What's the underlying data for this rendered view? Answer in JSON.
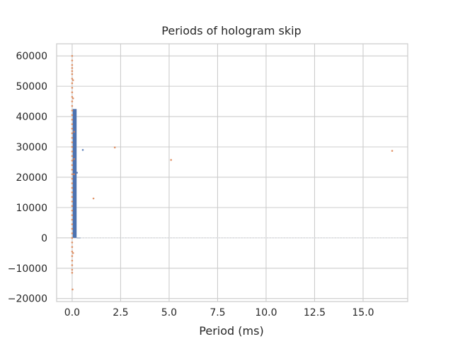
{
  "chart_data": {
    "type": "bar",
    "title": "Periods of hologram skip",
    "xlabel": "Period (ms)",
    "ylabel": "",
    "xlim": [
      -0.8,
      17.3
    ],
    "ylim": [
      -21000,
      64000
    ],
    "grid": true,
    "xticks": [
      0.0,
      2.5,
      5.0,
      7.5,
      10.0,
      12.5,
      15.0
    ],
    "xtick_labels": [
      "0.0",
      "2.5",
      "5.0",
      "7.5",
      "10.0",
      "12.5",
      "15.0"
    ],
    "yticks": [
      -20000,
      -10000,
      0,
      10000,
      20000,
      30000,
      40000,
      50000,
      60000
    ],
    "ytick_labels": [
      "−20000",
      "−10000",
      "0",
      "10000",
      "20000",
      "30000",
      "40000",
      "50000",
      "60000"
    ],
    "series": [
      {
        "kind": "histogram",
        "color": "#4c72b0",
        "bars": [
          {
            "x0": 0.03,
            "x1": 0.23,
            "value": 42500
          },
          {
            "x0": 0.23,
            "x1": 0.43,
            "value": 30
          }
        ],
        "baseline_extent": [
          0.03,
          17.0
        ]
      },
      {
        "kind": "scatter",
        "color": "#dd8452",
        "points": [
          {
            "x": 0.0,
            "y": 60000
          },
          {
            "x": 0.0,
            "y": 58500
          },
          {
            "x": 0.0,
            "y": 57000
          },
          {
            "x": 0.0,
            "y": 56000
          },
          {
            "x": 0.0,
            "y": 55000
          },
          {
            "x": 0.0,
            "y": 54000
          },
          {
            "x": 0.0,
            "y": 52500
          },
          {
            "x": 0.0,
            "y": 51000
          },
          {
            "x": 0.0,
            "y": 49500
          },
          {
            "x": 0.0,
            "y": 48000
          },
          {
            "x": 0.0,
            "y": 46500
          },
          {
            "x": 0.0,
            "y": 45000
          },
          {
            "x": 0.0,
            "y": 43500
          },
          {
            "x": 0.0,
            "y": 42000
          },
          {
            "x": 0.0,
            "y": 40500
          },
          {
            "x": 0.0,
            "y": 39000
          },
          {
            "x": 0.0,
            "y": 37500
          },
          {
            "x": 0.0,
            "y": 36000
          },
          {
            "x": 0.0,
            "y": 34500
          },
          {
            "x": 0.0,
            "y": 33000
          },
          {
            "x": 0.0,
            "y": 31500
          },
          {
            "x": 0.0,
            "y": 30000
          },
          {
            "x": 0.0,
            "y": 28500
          },
          {
            "x": 0.0,
            "y": 27000
          },
          {
            "x": 0.0,
            "y": 25500
          },
          {
            "x": 0.0,
            "y": 24000
          },
          {
            "x": 0.0,
            "y": 22500
          },
          {
            "x": 0.0,
            "y": 21000
          },
          {
            "x": 0.0,
            "y": 19500
          },
          {
            "x": 0.0,
            "y": 18000
          },
          {
            "x": 0.0,
            "y": 16500
          },
          {
            "x": 0.0,
            "y": 15000
          },
          {
            "x": 0.0,
            "y": 13500
          },
          {
            "x": 0.0,
            "y": 12000
          },
          {
            "x": 0.0,
            "y": 10500
          },
          {
            "x": 0.0,
            "y": 9000
          },
          {
            "x": 0.0,
            "y": 7500
          },
          {
            "x": 0.0,
            "y": 6000
          },
          {
            "x": 0.0,
            "y": 4500
          },
          {
            "x": 0.0,
            "y": 3000
          },
          {
            "x": 0.0,
            "y": 1500
          },
          {
            "x": 0.0,
            "y": 0
          },
          {
            "x": 0.0,
            "y": -1500
          },
          {
            "x": 0.0,
            "y": -3000
          },
          {
            "x": 0.0,
            "y": -4500
          },
          {
            "x": 0.0,
            "y": -6000
          },
          {
            "x": 0.0,
            "y": -7500
          },
          {
            "x": 0.0,
            "y": -9000
          },
          {
            "x": 0.0,
            "y": -10500
          },
          {
            "x": 0.0,
            "y": -11500
          },
          {
            "x": 0.1,
            "y": 35000
          },
          {
            "x": 0.1,
            "y": 26000
          },
          {
            "x": 0.1,
            "y": 21000
          },
          {
            "x": 0.05,
            "y": 46000
          },
          {
            "x": 0.05,
            "y": 52000
          },
          {
            "x": 0.05,
            "y": -5000
          },
          {
            "x": 0.02,
            "y": -17000
          },
          {
            "x": 1.1,
            "y": 13000
          },
          {
            "x": 2.2,
            "y": 29800
          },
          {
            "x": 5.1,
            "y": 25700
          },
          {
            "x": 16.5,
            "y": 28700
          }
        ]
      },
      {
        "kind": "scatter",
        "color": "#4c72b0",
        "points": [
          {
            "x": 0.55,
            "y": 29000
          },
          {
            "x": 0.25,
            "y": 21500
          }
        ]
      }
    ]
  }
}
